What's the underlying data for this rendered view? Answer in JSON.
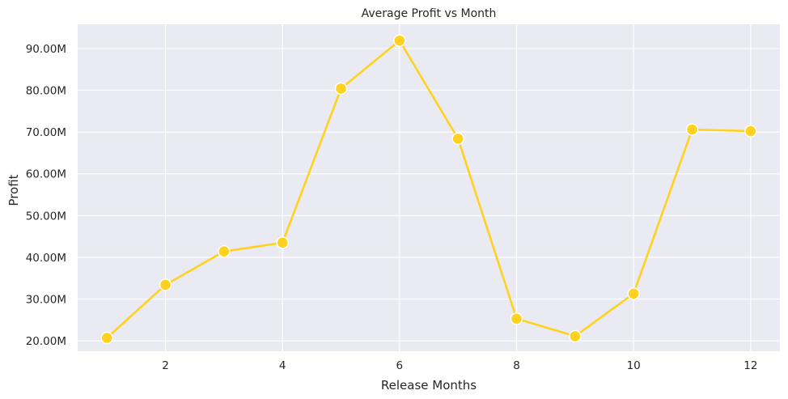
{
  "chart_data": {
    "type": "line",
    "title": "Average Profit vs Month",
    "xlabel": "Release Months",
    "ylabel": "Profit",
    "xlim": [
      0.5,
      12.5
    ],
    "ylim": [
      17500000,
      95800000
    ],
    "xticks": [
      2,
      4,
      6,
      8,
      10,
      12
    ],
    "xtick_labels": [
      "2",
      "4",
      "6",
      "8",
      "10",
      "12"
    ],
    "yticks": [
      20000000,
      30000000,
      40000000,
      50000000,
      60000000,
      70000000,
      80000000,
      90000000
    ],
    "ytick_labels": [
      "20.00M",
      "30.00M",
      "40.00M",
      "50.00M",
      "60.00M",
      "70.00M",
      "80.00M",
      "90.00M"
    ],
    "grid": true,
    "legend": "none",
    "colors": {
      "line": "#FFD21F",
      "background": "#EAEAF2",
      "grid": "#FFFFFF"
    },
    "series": [
      {
        "x": [
          1,
          2,
          3,
          4,
          5,
          6,
          7,
          8,
          9,
          10,
          11,
          12
        ],
        "y": [
          20700000,
          33400000,
          41400000,
          43500000,
          80400000,
          91900000,
          68400000,
          25300000,
          21100000,
          31300000,
          70600000,
          70200000
        ]
      }
    ]
  }
}
